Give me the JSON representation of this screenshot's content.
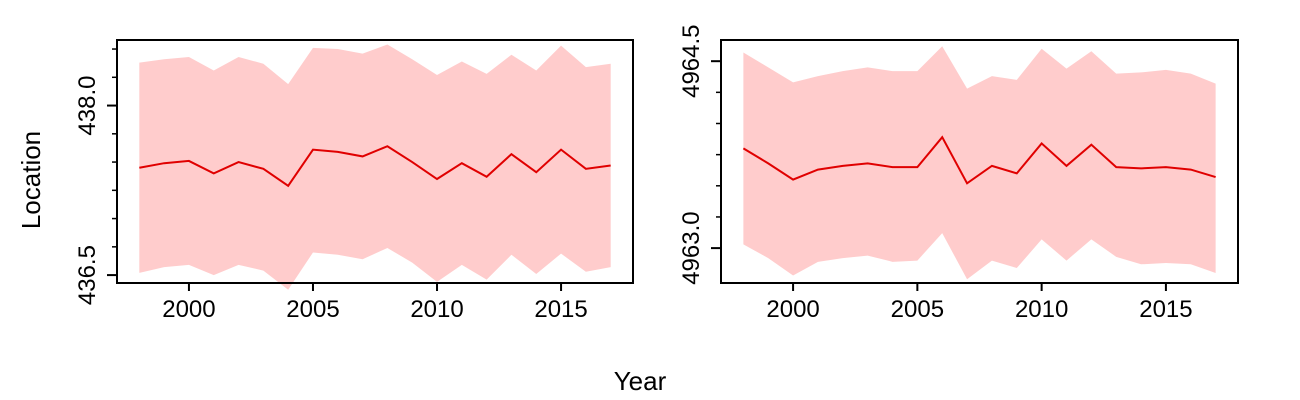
{
  "figure": {
    "xlabel": "Year",
    "ylabel": "Location"
  },
  "colors": {
    "line": "#e00000",
    "band": "#ffcccc",
    "frame": "#000000"
  },
  "chart_data": [
    {
      "type": "line",
      "xlim": [
        1997.1,
        2017.9
      ],
      "ylim": [
        436.43,
        438.58
      ],
      "xticks": [
        2000,
        2005,
        2010,
        2015
      ],
      "xtick_labels": [
        "2000",
        "2005",
        "2010",
        "2015"
      ],
      "yticks": [
        436.5,
        438.0
      ],
      "ytick_labels": [
        "436.5",
        "438.0"
      ],
      "yminor": [
        436.75,
        437.0,
        437.25,
        437.5,
        437.75,
        438.25,
        438.5
      ],
      "x": [
        1998,
        1999,
        2000,
        2001,
        2002,
        2003,
        2004,
        2005,
        2006,
        2007,
        2008,
        2009,
        2010,
        2011,
        2012,
        2013,
        2014,
        2015,
        2016,
        2017
      ],
      "series": [
        {
          "values": [
            437.45,
            437.49,
            437.51,
            437.4,
            437.5,
            437.44,
            437.29,
            437.61,
            437.59,
            437.55,
            437.64,
            437.5,
            437.35,
            437.49,
            437.37,
            437.57,
            437.41,
            437.61,
            437.44,
            437.47
          ]
        }
      ],
      "band_upper": [
        438.38,
        438.41,
        438.43,
        438.31,
        438.43,
        438.37,
        438.19,
        438.51,
        438.5,
        438.46,
        438.54,
        438.41,
        438.27,
        438.39,
        438.28,
        438.45,
        438.31,
        438.53,
        438.34,
        438.37
      ],
      "band_lower": [
        436.52,
        436.57,
        436.59,
        436.5,
        436.59,
        436.54,
        436.37,
        436.7,
        436.68,
        436.64,
        436.74,
        436.61,
        436.44,
        436.59,
        436.46,
        436.68,
        436.51,
        436.69,
        436.53,
        436.57
      ]
    },
    {
      "type": "line",
      "xlim": [
        1997.1,
        2017.9
      ],
      "ylim": [
        4962.72,
        4964.67
      ],
      "xticks": [
        2000,
        2005,
        2010,
        2015
      ],
      "xtick_labels": [
        "2000",
        "2005",
        "2010",
        "2015"
      ],
      "yticks": [
        4963.0,
        4964.5
      ],
      "ytick_labels": [
        "4963.0",
        "4964.5"
      ],
      "yminor": [
        4963.25,
        4963.5,
        4963.75,
        4964.0,
        4964.25
      ],
      "x": [
        1998,
        1999,
        2000,
        2001,
        2002,
        2003,
        2004,
        2005,
        2006,
        2007,
        2008,
        2009,
        2010,
        2011,
        2012,
        2013,
        2014,
        2015,
        2016,
        2017
      ],
      "series": [
        {
          "values": [
            4963.8,
            4963.68,
            4963.55,
            4963.63,
            4963.66,
            4963.68,
            4963.65,
            4963.65,
            4963.89,
            4963.52,
            4963.66,
            4963.6,
            4963.84,
            4963.66,
            4963.83,
            4963.65,
            4963.64,
            4963.65,
            4963.63,
            4963.57
          ]
        }
      ],
      "band_upper": [
        4964.57,
        4964.45,
        4964.33,
        4964.38,
        4964.42,
        4964.45,
        4964.42,
        4964.42,
        4964.62,
        4964.28,
        4964.38,
        4964.35,
        4964.6,
        4964.44,
        4964.58,
        4964.4,
        4964.41,
        4964.43,
        4964.4,
        4964.32
      ],
      "band_lower": [
        4963.03,
        4962.92,
        4962.78,
        4962.89,
        4962.92,
        4962.94,
        4962.89,
        4962.9,
        4963.12,
        4962.75,
        4962.9,
        4962.84,
        4963.07,
        4962.9,
        4963.07,
        4962.93,
        4962.87,
        4962.88,
        4962.87,
        4962.8
      ]
    }
  ]
}
